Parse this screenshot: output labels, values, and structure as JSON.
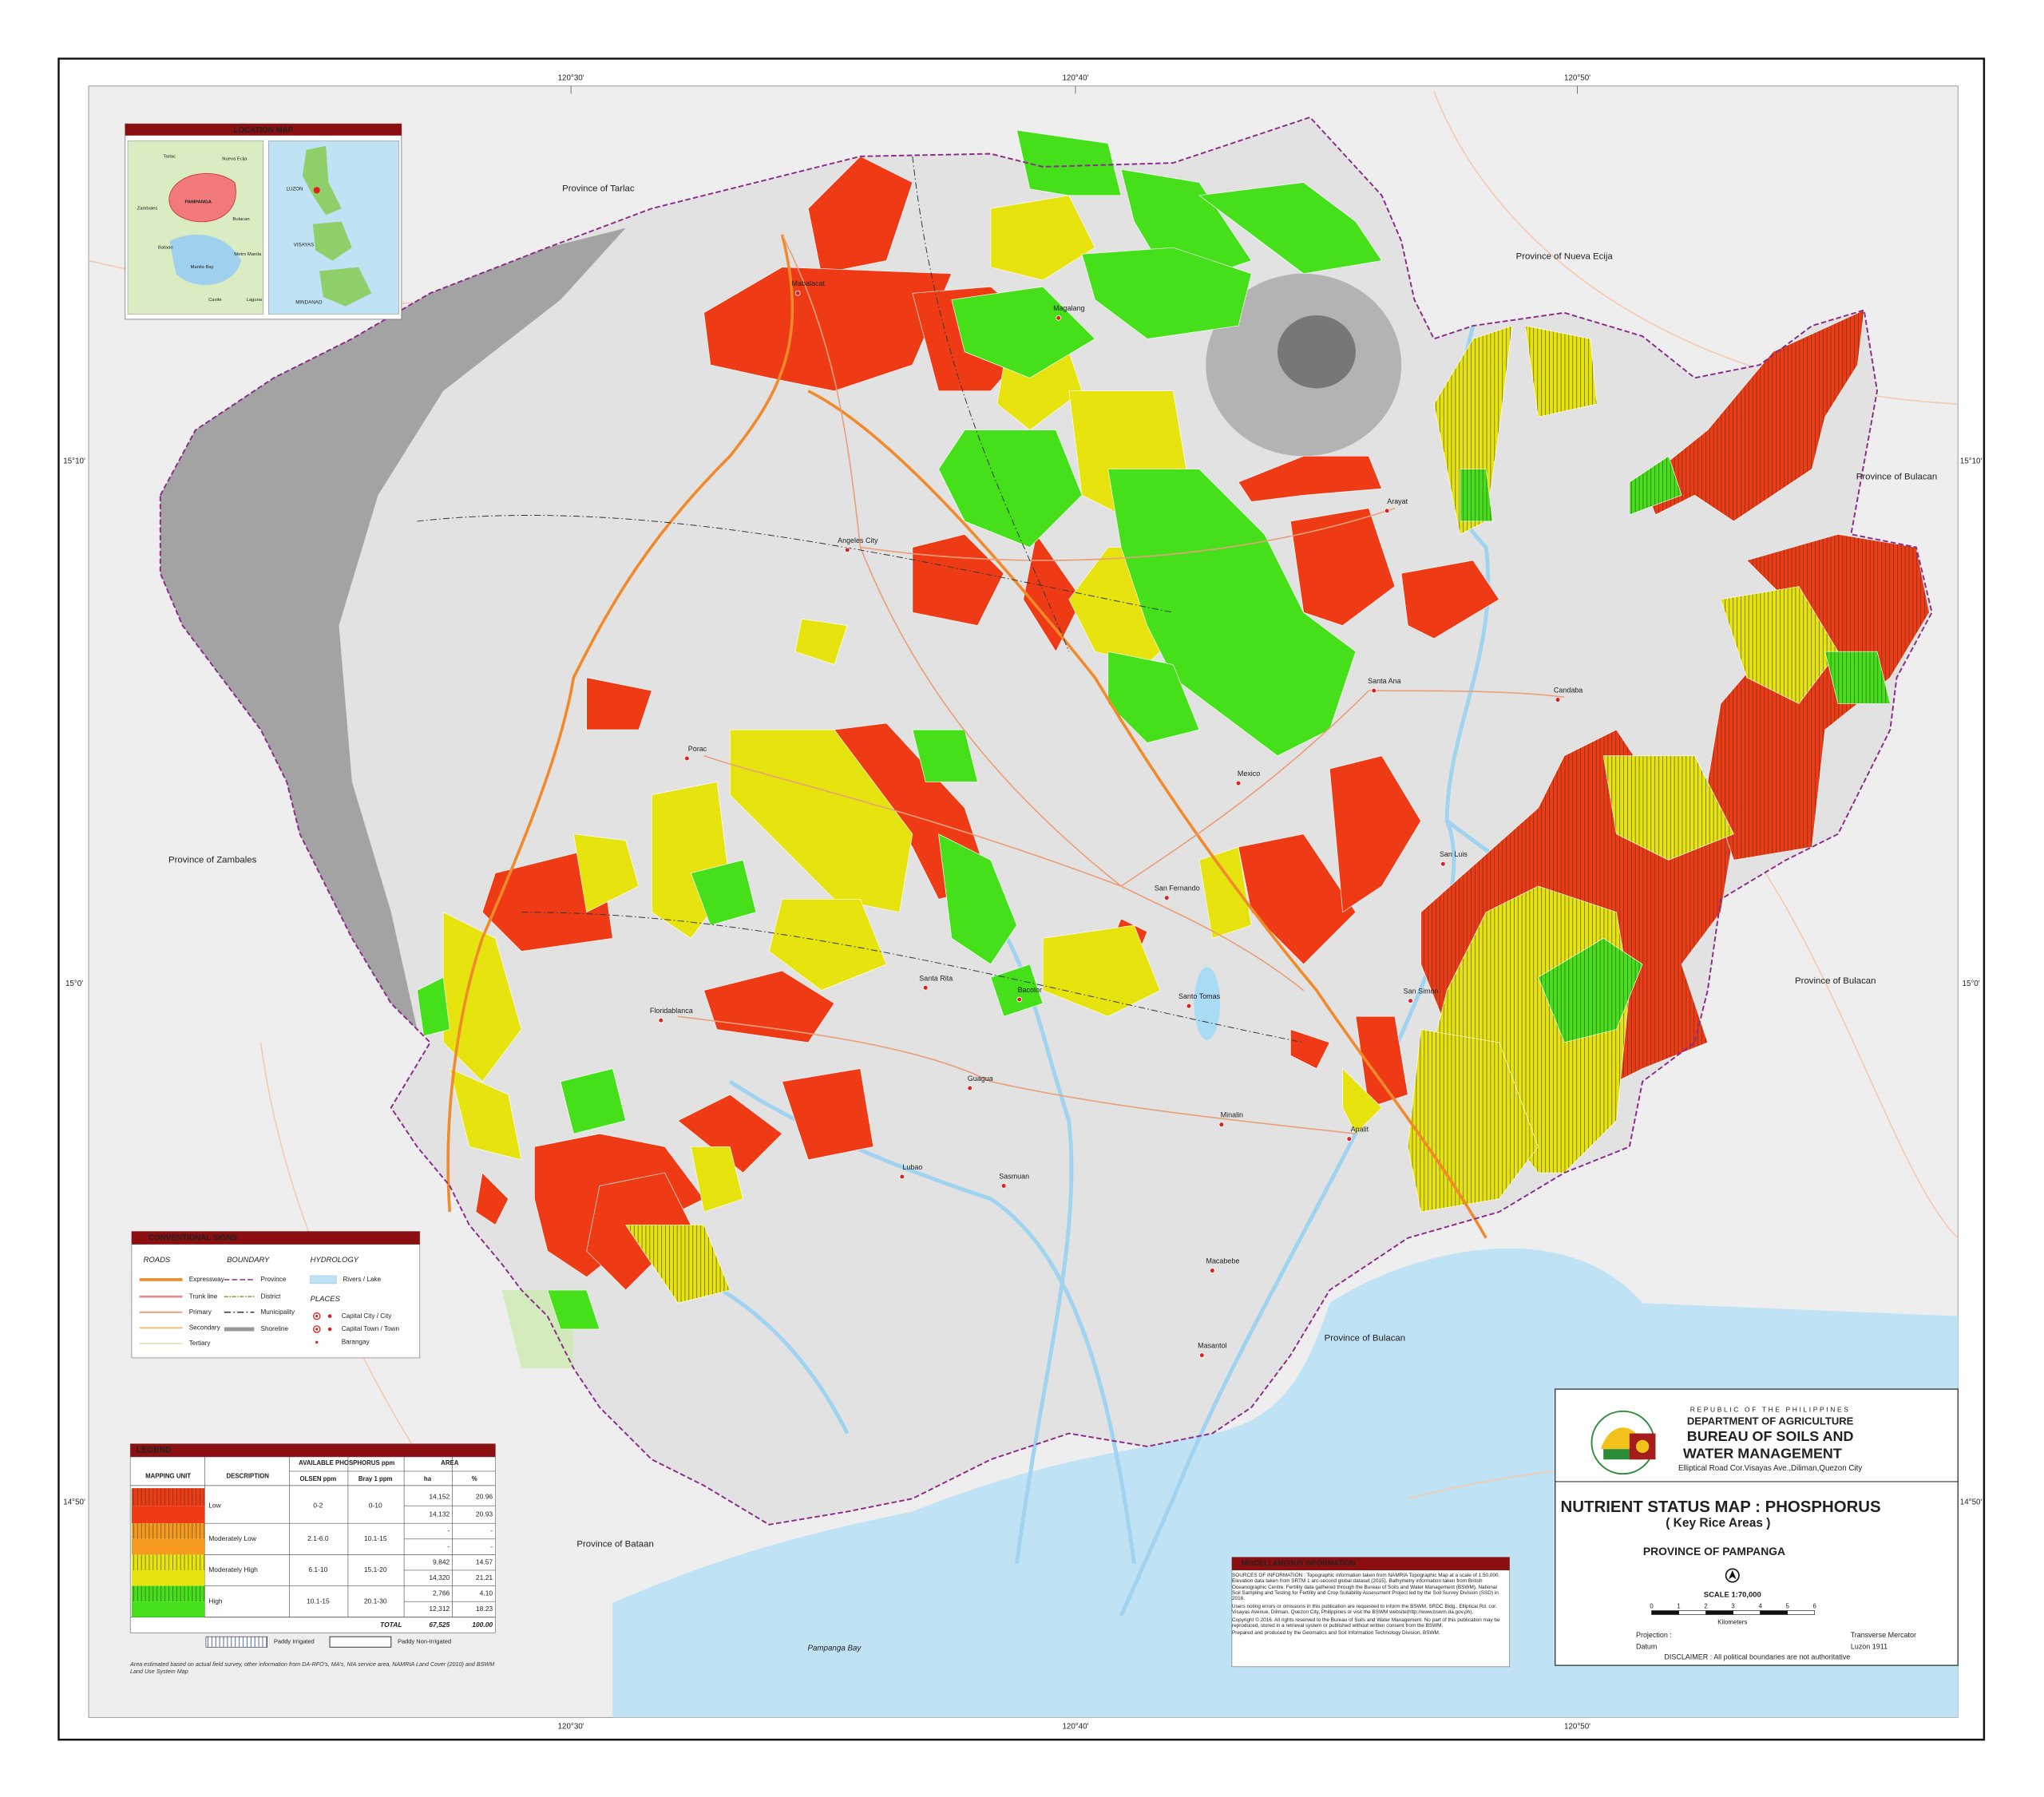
{
  "graticule": {
    "top": [
      "120°30'",
      "120°40'",
      "120°50'"
    ],
    "bottom": [
      "120°30'",
      "120°40'",
      "120°50'"
    ],
    "left": [
      "15°10'",
      "15°0'",
      "14°50'"
    ],
    "right": [
      "15°10'",
      "15°0'",
      "14°50'"
    ]
  },
  "provinces": [
    "Province of Tarlac",
    "Province of Nueva Ecija",
    "Province of Bulacan",
    "Province of Zambales",
    "Province of Bulacan",
    "Province of Bulacan",
    "Province of Bataan"
  ],
  "places": [
    "Mabalacat",
    "Magalang",
    "Angeles City",
    "Arayat",
    "Porac",
    "Santa Ana",
    "Candaba",
    "Mexico",
    "San Fernando",
    "San Luis",
    "Santa Rita",
    "Bacolor",
    "Santo Tomas",
    "San Simon",
    "Floridablanca",
    "Guagua",
    "Minalin",
    "Apalit",
    "Lubao",
    "Sasmuan",
    "Macabebe",
    "Masantol"
  ],
  "water": "Pampanga Bay",
  "location_map": {
    "title": "LOCATION MAP",
    "labels": [
      "Tarlac",
      "Nueva Ecija",
      "Zambales",
      "PAMPANGA",
      "Bulacan",
      "Bataan",
      "Manila Bay",
      "Metro Manila",
      "Cavite",
      "Laguna"
    ],
    "country_labels": [
      "LUZON",
      "VISAYAS",
      "MINDANAO"
    ]
  },
  "conventional_signs": {
    "title": "CONVENTIONAL SIGNS",
    "roads": {
      "heading": "ROADS",
      "items": [
        "Expressway",
        "Trunk line",
        "Primary",
        "Secondary",
        "Tertiary"
      ]
    },
    "boundary": {
      "heading": "BOUNDARY",
      "items": [
        "Province",
        "District",
        "Municipality",
        "Shoreline"
      ]
    },
    "hydrology": {
      "heading": "HYDROLOGY",
      "items": [
        "Rivers / Lake"
      ]
    },
    "places": {
      "heading": "PLACES",
      "items": [
        "Capital City / City",
        "Capital Town /  Town",
        "Barangay"
      ]
    }
  },
  "legend": {
    "title": "LEGEND",
    "headers": [
      "MAPPING UNIT",
      "DESCRIPTION",
      "AVAILABLE PHOSPHORUS ppm",
      "AREA"
    ],
    "subheaders": [
      "OLSEN ppm",
      "Bray 1 ppm",
      "ha",
      "%"
    ],
    "rows": [
      {
        "description": "Low",
        "olsen": "0-2",
        "bray": "0-10",
        "color": "#ee3b16",
        "area": [
          [
            "14,152",
            "20.96"
          ],
          [
            "14,132",
            "20.93"
          ]
        ]
      },
      {
        "description": "Moderately Low",
        "olsen": "2.1-6.0",
        "bray": "10.1-15",
        "color": "#f59a1c",
        "area": [
          [
            "-",
            "-"
          ],
          [
            "-",
            "-"
          ]
        ]
      },
      {
        "description": "Moderately High",
        "olsen": "6.1-10",
        "bray": "15.1-20",
        "color": "#e6e30f",
        "area": [
          [
            "9,842",
            "14.57"
          ],
          [
            "14,320",
            "21.21"
          ]
        ]
      },
      {
        "description": "High",
        "olsen": "10.1-15",
        "bray": "20.1-30",
        "color": "#46e01b",
        "area": [
          [
            "2,766",
            "4.10"
          ],
          [
            "12,312",
            "18.23"
          ]
        ]
      }
    ],
    "total": {
      "label": "TOTAL",
      "ha": "67,525",
      "pct": "100.00"
    },
    "paddy": [
      "Paddy Irrigated",
      "Paddy Non-Irrigated"
    ],
    "note": "Area estimated based on actual field survey, other information from DA-RFO's, MA's, NIA service area, NAMRIA Land Cover (2010) and BSWM Land Use System Map"
  },
  "misc": {
    "title": "MISCELLANEOUS INFORMATION",
    "paragraphs": [
      "SOURCES OF INFORMATION : Topographic information taken from NAMRIA Topographic Map at a scale of 1:50,000. Elevation data taken from SRTM 1 arc-second global dataset (2015). Bathymetry information taken from British Oceanographic Centre. Fertility data gathered through the Bureau of Soils and Water Management (BSWM), National Soil Sampling and Testing for Fertility and Crop Suitability Assessment Project led by the Soil Survey Division (SSD) in 2016.",
      "Users noting errors or omissions in this publication are requested to inform the BSWM, SRDC Bldg., Elliptical Rd. cor. Visayas Avenue, Diliman, Quezon City, Philippines or visit the BSWM website(http://www.bswm.da.gov.ph).",
      "Copyright © 2016. All rights reserved to the Bureau of Soils and Water Management. No part of this publication may be reproduced, stored in a retrieval system or published without written consent from the BSWM.",
      "Prepared and produced by the Geomatics and Soil Information Technology Division, BSWM."
    ]
  },
  "title_block": {
    "republic": "REPUBLIC OF THE PHILIPPINES",
    "department": "DEPARTMENT OF AGRICULTURE",
    "bureau_1": "BUREAU OF SOILS AND",
    "bureau_2": "WATER MANAGEMENT",
    "address": "Elliptical Road Cor.Visayas Ave.,Diliman,Quezon City",
    "title": "NUTRIENT STATUS MAP : PHOSPHORUS",
    "subtitle": "( Key Rice Areas )",
    "province": "PROVINCE OF PAMPANGA",
    "scale": "SCALE  1:70,000",
    "scale_ticks": [
      0,
      1,
      2,
      3,
      4,
      5,
      6
    ],
    "scale_unit": "Kilometers",
    "projection_label": "Projection :",
    "projection": "Transverse Mercator",
    "datum_label": "Datum",
    "datum": "Luzon 1911",
    "disclaimer": "DISCLAIMER : All political boundaries are not authoritative"
  }
}
